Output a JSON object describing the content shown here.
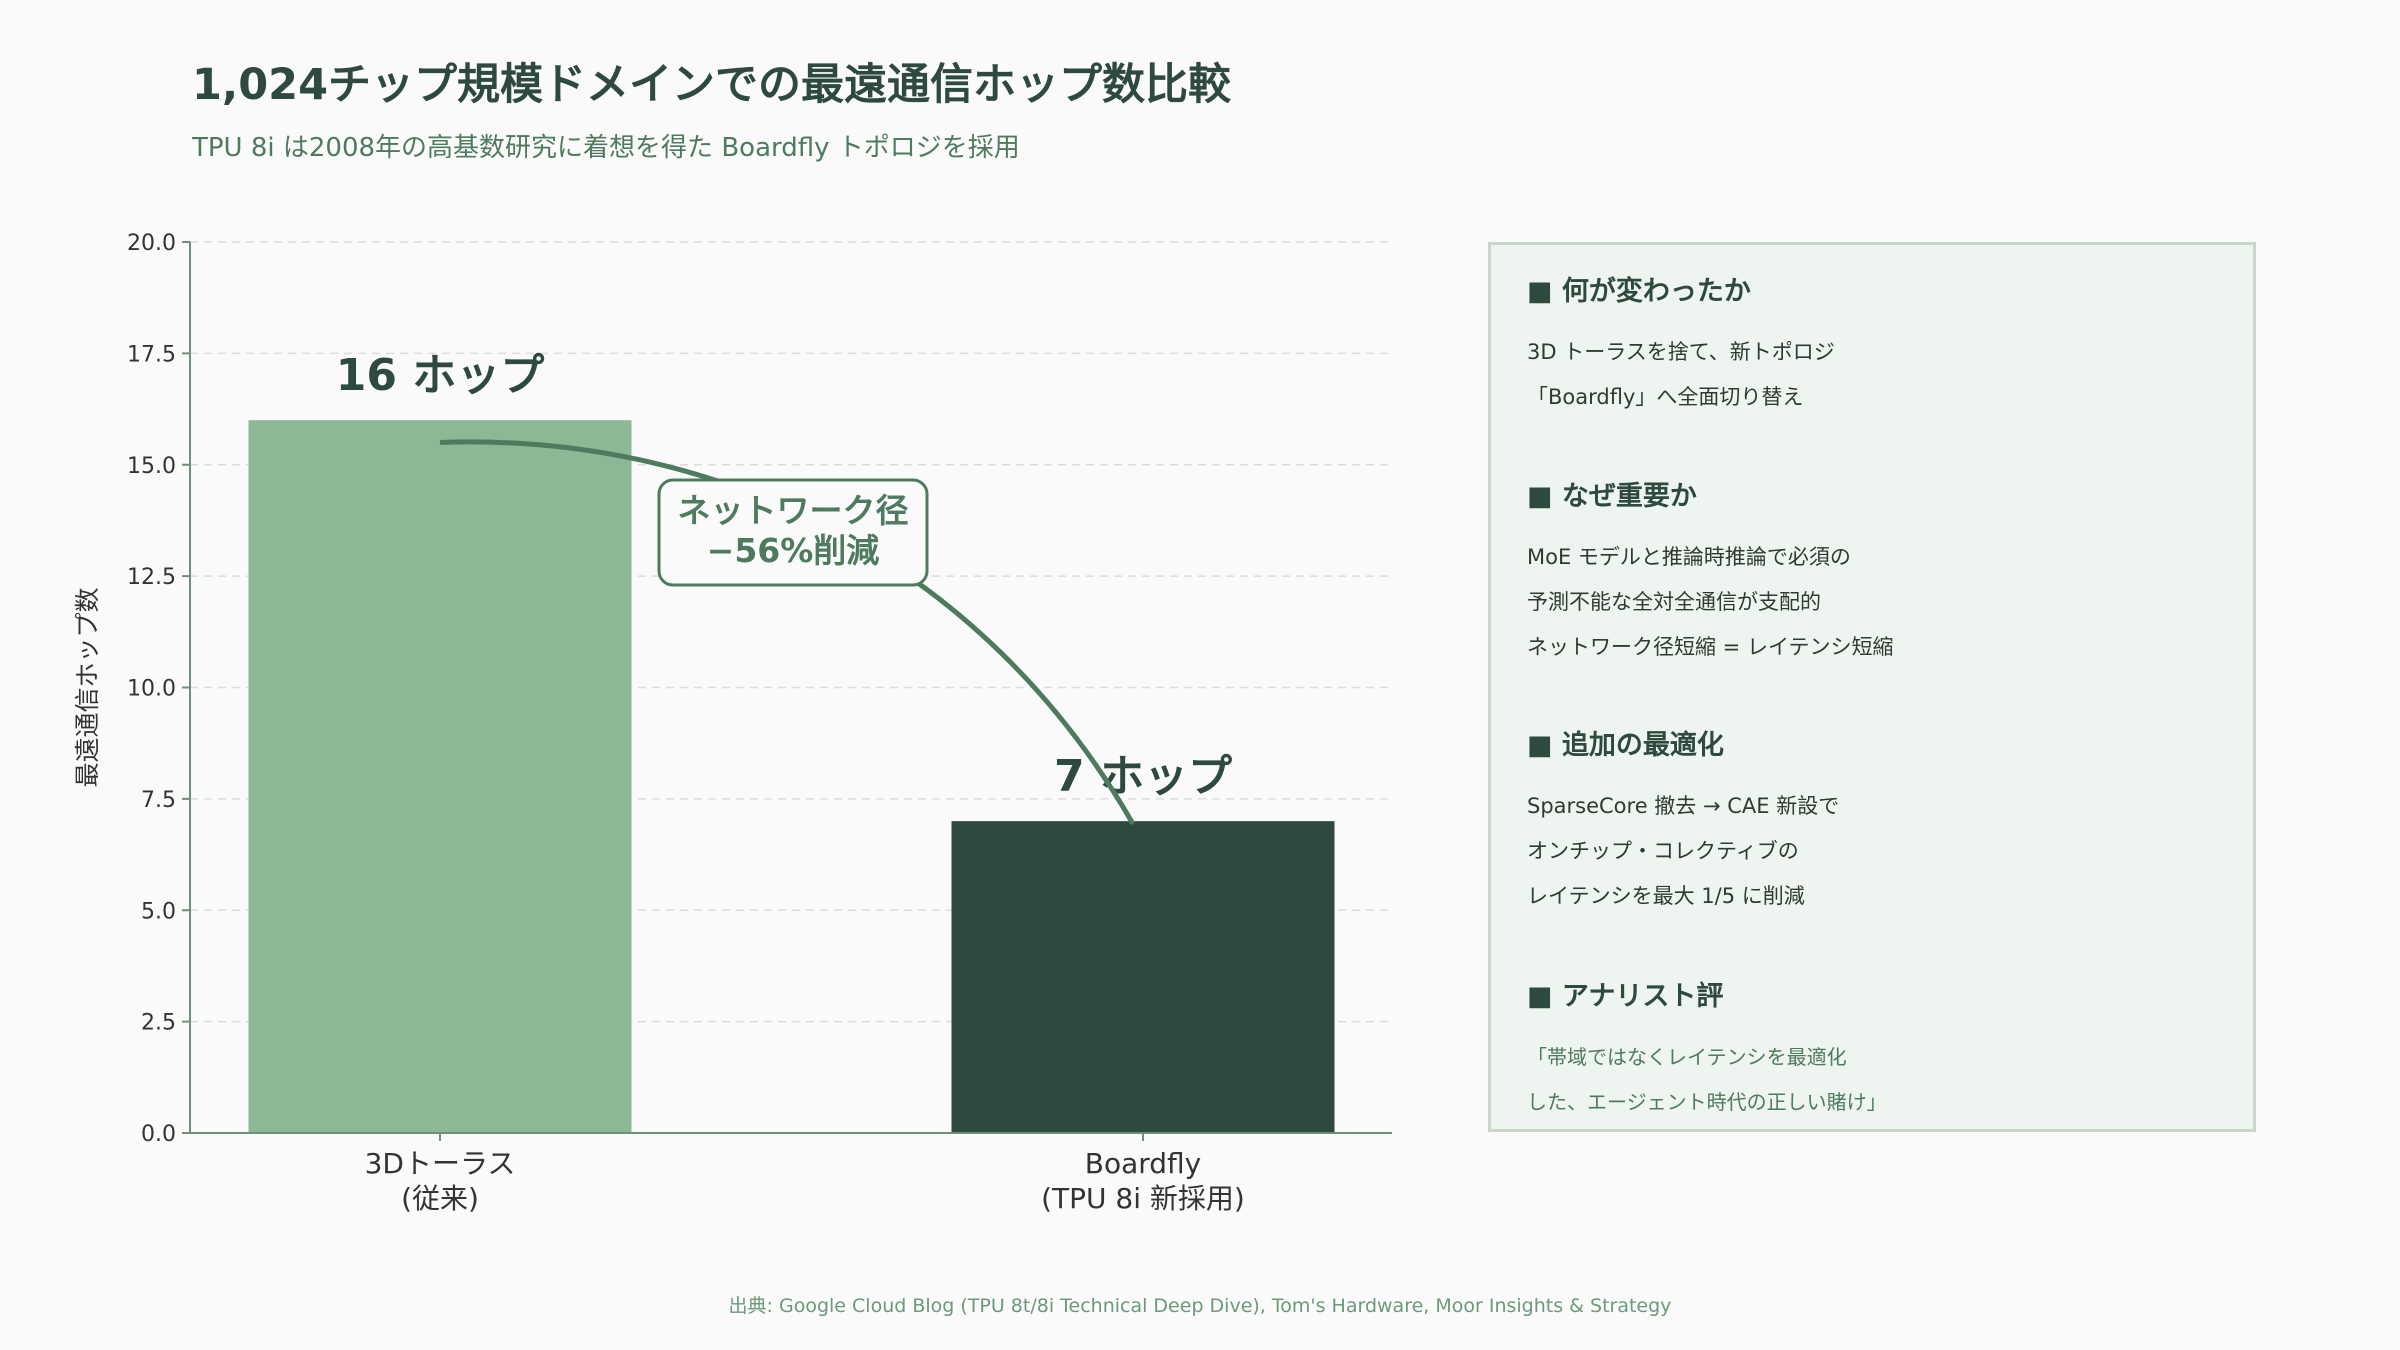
{
  "header": {
    "title": "1,024チップ規模ドメインでの最遠通信ホップ数比較",
    "subtitle": "TPU 8i は2008年の高基数研究に着想を得た Boardfly トポロジを採用"
  },
  "chart_data": {
    "type": "bar",
    "categories": [
      [
        "3Dトーラス",
        "(従来)"
      ],
      [
        "Boardfly",
        "(TPU 8i 新採用)"
      ]
    ],
    "values": [
      16,
      7
    ],
    "data_labels": [
      "16 ホップ",
      "7 ホップ"
    ],
    "bar_colors": [
      "#8db896",
      "#2e4a3f"
    ],
    "ylabel": "最遠通信ホップ数",
    "ylim": [
      0,
      20
    ],
    "yticks": [
      "0.0",
      "2.5",
      "5.0",
      "7.5",
      "10.0",
      "12.5",
      "15.0",
      "17.5",
      "20.0"
    ],
    "grid": true,
    "annotation": {
      "lines": [
        "ネットワーク径",
        "−56%削減"
      ],
      "arrow_from_value": 15.5,
      "arrow_to_value": 7.5
    }
  },
  "panel": {
    "sections": [
      {
        "heading": "■ 何が変わったか",
        "lines": [
          "3D トーラスを捨て、新トポロジ",
          "「Boardfly」へ全面切り替え"
        ]
      },
      {
        "heading": "■ なぜ重要か",
        "lines": [
          "MoE モデルと推論時推論で必須の",
          "予測不能な全対全通信が支配的",
          "ネットワーク径短縮 = レイテンシ短縮"
        ]
      },
      {
        "heading": "■ 追加の最適化",
        "lines": [
          "SparseCore 撤去 → CAE 新設で",
          "オンチップ・コレクティブの",
          "レイテンシを最大 1/5 に削減"
        ]
      },
      {
        "heading": "■ アナリスト評",
        "lines": [
          "「帯域ではなくレイテンシを最適化",
          "した、エージェント時代の正しい賭け」"
        ]
      }
    ]
  },
  "footer": {
    "source": "出典: Google Cloud Blog (TPU 8t/8i Technical Deep Dive), Tom's Hardware, Moor Insights & Strategy"
  },
  "colors": {
    "dark_green": "#2e4a3f",
    "mid_green": "#4e7a5d",
    "light_green": "#8db896",
    "panel_bg": "#eef4ef"
  }
}
